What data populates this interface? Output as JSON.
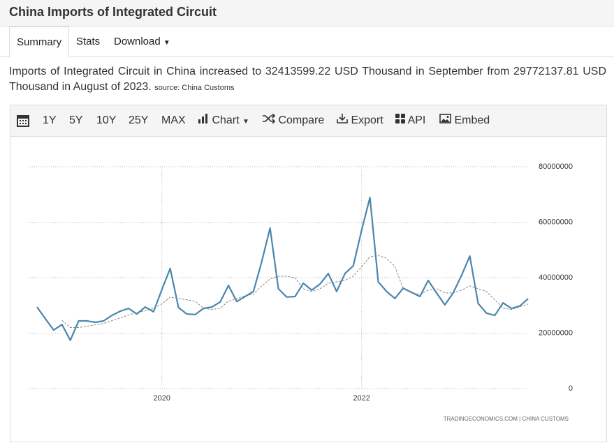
{
  "header": {
    "title": "China Imports of Integrated Circuit"
  },
  "tabs": [
    "Summary",
    "Stats",
    "Download"
  ],
  "description": {
    "text": "Imports of Integrated Circuit in China increased to 32413599.22 USD Thousand in September from 29772137.81 USD Thousand in August of 2023.",
    "source": "source: China Customs"
  },
  "toolbar": [
    "1Y",
    "5Y",
    "10Y",
    "25Y",
    "MAX",
    "Chart",
    "Compare",
    "Export",
    "API",
    "Embed"
  ],
  "chart_data": {
    "type": "line",
    "categories": [
      null,
      null,
      null,
      null,
      null,
      null,
      null,
      null,
      null,
      null,
      null,
      null,
      null,
      null,
      null,
      "2020",
      null,
      null,
      null,
      null,
      null,
      null,
      null,
      null,
      null,
      null,
      null,
      null,
      null,
      null,
      null,
      null,
      null,
      null,
      null,
      null,
      null,
      null,
      null,
      "2022",
      null,
      null,
      null,
      null,
      null,
      null,
      null,
      null,
      null,
      null,
      null,
      null,
      null,
      null,
      null,
      null,
      null,
      null,
      null,
      null
    ],
    "series": [
      {
        "color": "#4a86ae",
        "values": [
          29400000,
          25200000,
          21100000,
          23100000,
          17400000,
          24400000,
          24400000,
          23900000,
          24400000,
          26400000,
          27900000,
          28900000,
          26900000,
          29400000,
          27700000,
          35700000,
          43300000,
          29200000,
          26900000,
          26700000,
          28900000,
          29400000,
          31200000,
          37200000,
          31400000,
          33200000,
          35000000,
          45800000,
          57900000,
          36000000,
          33000000,
          33200000,
          38000000,
          35500000,
          37700000,
          41500000,
          35000000,
          41500000,
          44300000,
          57100000,
          68900000,
          38500000,
          35000000,
          32500000,
          36200000,
          34700000,
          33200000,
          39000000,
          34500000,
          30200000,
          34500000,
          40800000,
          47800000,
          30700000,
          27200000,
          26400000,
          30900000,
          28900000,
          29772137.81,
          32413599.22
        ]
      },
      {
        "color": "#888888",
        "dashed": true,
        "values": [
          null,
          null,
          null,
          24600000,
          22000000,
          22000000,
          22500000,
          23000000,
          23500000,
          24500000,
          25500000,
          26500000,
          27500000,
          28000000,
          29000000,
          30500000,
          33000000,
          32500000,
          32000000,
          31500000,
          29000000,
          28500000,
          29000000,
          31500000,
          32500000,
          33500000,
          34000000,
          37000000,
          39500000,
          40500000,
          40500000,
          40000000,
          36000000,
          35000000,
          36000000,
          38000000,
          38500000,
          39000000,
          40500000,
          44000000,
          47500000,
          48000000,
          47000000,
          44000000,
          36000000,
          34500000,
          34000000,
          35500000,
          36000000,
          34500000,
          34500000,
          35500000,
          37000000,
          36000000,
          35000000,
          32000000,
          29000000,
          28500000,
          29500000,
          30500000
        ]
      }
    ],
    "ylim": [
      0,
      80000000
    ],
    "yticks": [
      0,
      20000000,
      40000000,
      60000000,
      80000000
    ],
    "grid": true,
    "credits": "TRADINGECONOMICS.COM  |  CHINA CUSTOMS"
  }
}
